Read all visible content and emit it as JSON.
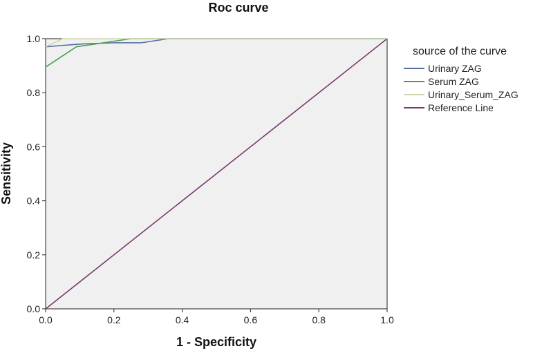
{
  "chart_data": {
    "type": "line",
    "title": "Roc curve",
    "xlabel": "1 - Specificity",
    "ylabel": "Sensitivity",
    "xlim": [
      0.0,
      1.0
    ],
    "ylim": [
      0.0,
      1.0
    ],
    "x_ticks": [
      "0.0",
      "0.2",
      "0.4",
      "0.6",
      "0.8",
      "1.0"
    ],
    "y_ticks": [
      "0.0",
      "0.2",
      "0.4",
      "0.6",
      "0.8",
      "1.0"
    ],
    "grid": false,
    "plot_background": "#f0f0f0",
    "legend": {
      "title": "source of the curve",
      "placement": "right"
    },
    "series": [
      {
        "name": "Urinary ZAG",
        "color": "#5a6fa0",
        "x": [
          0.0,
          0.1,
          0.2,
          0.28,
          0.36,
          1.0
        ],
        "y": [
          0.97,
          0.98,
          0.985,
          0.985,
          1.0,
          1.0
        ]
      },
      {
        "name": "Serum ZAG",
        "color": "#4aa04a",
        "x": [
          0.0,
          0.09,
          0.25,
          1.0
        ],
        "y": [
          0.895,
          0.97,
          1.0,
          1.0
        ]
      },
      {
        "name": "Urinary_Serum_ZAG",
        "color": "#d2d6b0",
        "x": [
          0.0,
          0.05,
          1.0
        ],
        "y": [
          0.97,
          1.0,
          1.0
        ]
      },
      {
        "name": "Reference Line",
        "color": "#7a3a6e",
        "x": [
          0.0,
          1.0
        ],
        "y": [
          0.0,
          1.0
        ]
      }
    ]
  }
}
